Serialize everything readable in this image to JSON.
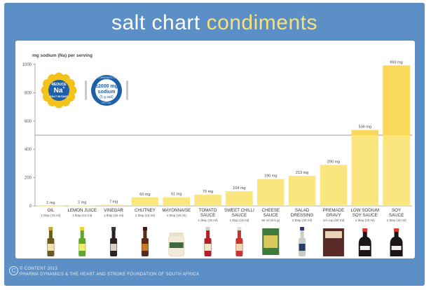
{
  "header": {
    "title_main": "salt chart",
    "title_accent": "condiments"
  },
  "badges": {
    "reduce": {
      "top": "REDUCE",
      "symbol": "Na",
      "plus": "+",
      "bottom": "SALT INTAKE"
    },
    "limit": {
      "ring_top": "RECOMMENDED MAX",
      "amount": "±2000 mg",
      "word": "sodium",
      "salt": "(5 g salt)",
      "ring_bottom": "PER DAY"
    }
  },
  "chart_data": {
    "type": "bar",
    "ylabel": "mg sodium (Na) per serving",
    "ylim": [
      0,
      1000
    ],
    "yticks": [
      0,
      200,
      400,
      600,
      800,
      1000
    ],
    "reference_line": 500,
    "bar_color": "#fbe57e",
    "categories": [
      "OIL",
      "LEMON JUICE",
      "VINEGAR",
      "CHUTNEY",
      "MAYONNAISE",
      "TOMATO SAUCE",
      "SWEET CHILLI SAUCE",
      "CHEESE SAUCE",
      "SALAD DRESSING",
      "PREMADE GRAVY",
      "LOW SODIUM SOY SAUCE",
      "SOY SAUCE"
    ],
    "category_lines": [
      [
        "OIL"
      ],
      [
        "LEMON JUICE"
      ],
      [
        "VINEGAR"
      ],
      [
        "CHUTNEY"
      ],
      [
        "MAYONNAISE"
      ],
      [
        "TOMATO",
        "SAUCE"
      ],
      [
        "SWEET CHILLI",
        "SAUCE"
      ],
      [
        "CHEESE",
        "SAUCE"
      ],
      [
        "SALAD",
        "DRESSING"
      ],
      [
        "PREMADE",
        "GRAVY"
      ],
      [
        "LOW SODIUM",
        "SOY SAUCE"
      ],
      [
        "SOY",
        "SAUCE"
      ]
    ],
    "servings": [
      "1 tbsp (15 ml)",
      "1 tbsp (15 ml)",
      "1 tbsp (15 ml)",
      "1 tbsp (15 ml)",
      "1 tbsp (15 ml)",
      "1 tbsp (15 ml)",
      "1 tbsp (15 ml)",
      "60 ml (9.5 g)",
      "2 tbsp (30 ml)",
      "1/4 cup (60 ml)",
      "1 tbsp (15 ml)",
      "1 tbsp (15 ml)"
    ],
    "values": [
      1,
      2,
      7,
      60,
      61,
      79,
      104,
      190,
      213,
      290,
      536,
      993
    ],
    "value_labels": [
      "1 mg",
      "2 mg",
      "7 mg",
      "60 mg",
      "61 mg",
      "79 mg",
      "104 mg",
      "190 mg",
      "213 mg",
      "290 mg",
      "536 mg",
      "993 mg"
    ],
    "products": [
      {
        "icon": "oil-bottle-icon",
        "shape": "bottle",
        "body": "#6b5a22",
        "cap": "#c8a93d",
        "label": "#efe3b0"
      },
      {
        "icon": "lemon-juice-bottle-icon",
        "shape": "bottle",
        "body": "#5fa62c",
        "cap": "#e7d52a",
        "label": "#f3eb6a"
      },
      {
        "icon": "vinegar-bottle-icon",
        "shape": "bottle",
        "body": "#2a2420",
        "cap": "#3a3330",
        "label": "#d9d2c4"
      },
      {
        "icon": "chutney-bottle-icon",
        "shape": "bottle",
        "body": "#5a2a18",
        "cap": "#3b1c12",
        "label": "#c87a2a"
      },
      {
        "icon": "mayonnaise-jar-icon",
        "shape": "jar",
        "body": "#f2ead6",
        "cap": "#e6e0cc",
        "label": "#3d6b3d"
      },
      {
        "icon": "tomato-sauce-bottle-icon",
        "shape": "bottle",
        "body": "#b3202a",
        "cap": "#d8d2c0",
        "label": "#f0e6c8"
      },
      {
        "icon": "sweet-chilli-sauce-bottle-icon",
        "shape": "bottle",
        "body": "#c8342e",
        "cap": "#e5e0d0",
        "label": "#e8d9b0"
      },
      {
        "icon": "cheese-sauce-packet-icon",
        "shape": "packet",
        "body": "#3e7a3a",
        "cap": "#3e7a3a",
        "label": "#d8c85a"
      },
      {
        "icon": "salad-dressing-bottle-icon",
        "shape": "bottle",
        "body": "#c9ccc4",
        "cap": "#2a3a6a",
        "label": "#2a3a6a"
      },
      {
        "icon": "gravy-box-icon",
        "shape": "box",
        "body": "#5a2a26",
        "cap": "#5a2a26",
        "label": "#e9d6b8"
      },
      {
        "icon": "low-sodium-soy-sauce-bottle-icon",
        "shape": "flask",
        "body": "#1b1615",
        "cap": "#d33b2d",
        "label": "#f0f0f0"
      },
      {
        "icon": "soy-sauce-bottle-icon",
        "shape": "flask",
        "body": "#1b1615",
        "cap": "#d33b2d",
        "label": "#f0f0f0"
      }
    ]
  },
  "footer": {
    "line1": "© CONTENT 2013",
    "line2": "PHARMA DYNAMICS & THE HEART AND STROKE FOUNDATION OF SOUTH AFRICA",
    "mark": "C"
  }
}
